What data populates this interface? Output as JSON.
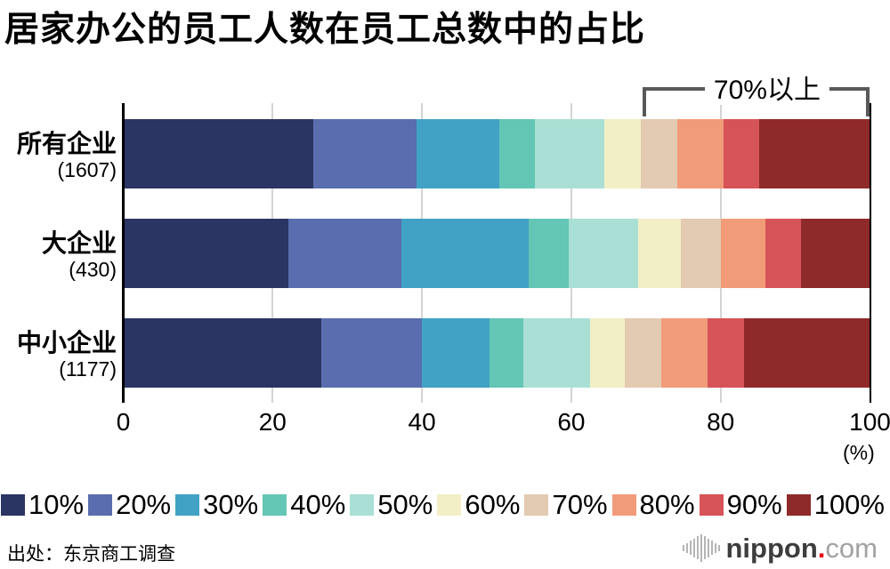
{
  "title": "居家办公的员工人数在员工总数中的占比",
  "chart_data": {
    "type": "bar",
    "orientation": "horizontal",
    "stacked": true,
    "title": "居家办公的员工人数在员工总数中的占比",
    "categories": [
      "10%",
      "20%",
      "30%",
      "40%",
      "50%",
      "60%",
      "70%",
      "80%",
      "90%",
      "100%"
    ],
    "palette": [
      "#2a3563",
      "#5a6dae",
      "#41a2c6",
      "#64c6b4",
      "#a9dfd4",
      "#f2efc7",
      "#e3cab2",
      "#f29b79",
      "#d65457",
      "#8e2a29"
    ],
    "rows": [
      {
        "label": "所有企业",
        "count": "(1607)",
        "values": [
          25.3,
          13.9,
          11.1,
          4.8,
          9.3,
          4.9,
          4.9,
          6.2,
          4.8,
          14.8
        ]
      },
      {
        "label": "大企业",
        "count": "(430)",
        "values": [
          22.0,
          15.2,
          17.0,
          5.4,
          9.4,
          5.7,
          5.4,
          5.9,
          4.8,
          9.2
        ]
      },
      {
        "label": "中小企业",
        "count": "(1177)",
        "values": [
          26.4,
          13.5,
          9.1,
          4.5,
          9.0,
          4.6,
          5.0,
          6.2,
          4.9,
          16.8
        ]
      }
    ],
    "x_ticks": [
      "0",
      "20",
      "40",
      "60",
      "80",
      "100"
    ],
    "x_unit_label": "(%)",
    "xlim": [
      0,
      100
    ],
    "grid": true,
    "legend_position": "bottom",
    "annotation": {
      "label": "70%以上",
      "from_pct": 69.5,
      "to_pct": 100
    }
  },
  "footer": {
    "source": "出处：东京商工调查",
    "logo": {
      "word": "nippon",
      "dot": ".",
      "tld": "com"
    }
  },
  "colors": {
    "axis_line": "#000000",
    "grid_line": "#d4d4d4",
    "bracket": "#595959",
    "logo_bars": "#b5b5b5",
    "logo_word": "#3d3d3d",
    "logo_dot": "#e60012",
    "logo_tld": "#a2a2a2"
  }
}
